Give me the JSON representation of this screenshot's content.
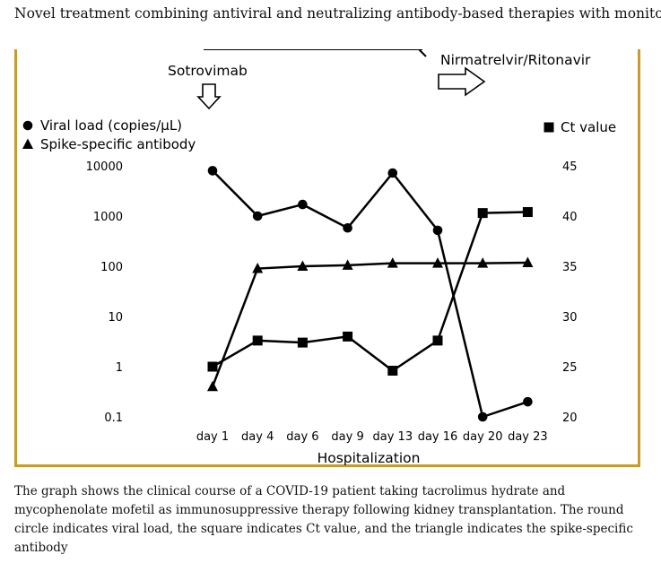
{
  "page": {
    "title": "Novel treatment combining antiviral and neutralizing antibody-based therapies with monitoring",
    "caption": "The graph shows the clinical course of a COVID-19 patient taking tacrolimus hydrate and mycophenolate mofetil as immunosuppressive therapy following kidney transplantation. The round circle indicates viral load, the square indicates Ct value, and the triangle indicates the spike-specific antibody"
  },
  "chart_data": {
    "type": "line",
    "categories": [
      "day 1",
      "day 4",
      "day 6",
      "day 9",
      "day 13",
      "day 16",
      "day 20",
      "day 23"
    ],
    "xlabel": "Hospitalization",
    "y_left": {
      "scale": "log",
      "ticks": [
        0.1,
        1,
        10,
        100,
        1000,
        10000
      ],
      "tick_labels": [
        "0.1",
        "1",
        "10",
        "100",
        "1000",
        "10000"
      ],
      "range": [
        0.1,
        10000
      ]
    },
    "y_right": {
      "scale": "linear",
      "ticks": [
        20,
        25,
        30,
        35,
        40,
        45
      ],
      "tick_labels": [
        "20",
        "25",
        "30",
        "35",
        "40",
        "45"
      ],
      "range": [
        20,
        45
      ]
    },
    "series": [
      {
        "name": "Viral load (copies/μL)",
        "marker": "circle",
        "axis": "left",
        "values": [
          8000,
          1000,
          1700,
          580,
          7200,
          520,
          0.1,
          0.2
        ]
      },
      {
        "name": "Spike-specific antibody",
        "marker": "triangle",
        "axis": "left",
        "values": [
          0.4,
          90,
          100,
          105,
          115,
          115,
          115,
          118
        ]
      },
      {
        "name": "Ct value",
        "marker": "square",
        "axis": "right",
        "values": [
          25,
          27.6,
          27.4,
          28,
          24.6,
          27.6,
          40.3,
          40.4
        ]
      }
    ],
    "annotations": [
      {
        "label": "Sotrovimab",
        "at": "day 1",
        "arrow": "down"
      },
      {
        "label": "Nirmatrelvir/Ritonavir",
        "at": "day 20",
        "arrow": "right"
      }
    ],
    "grid": false,
    "legend": "top"
  }
}
